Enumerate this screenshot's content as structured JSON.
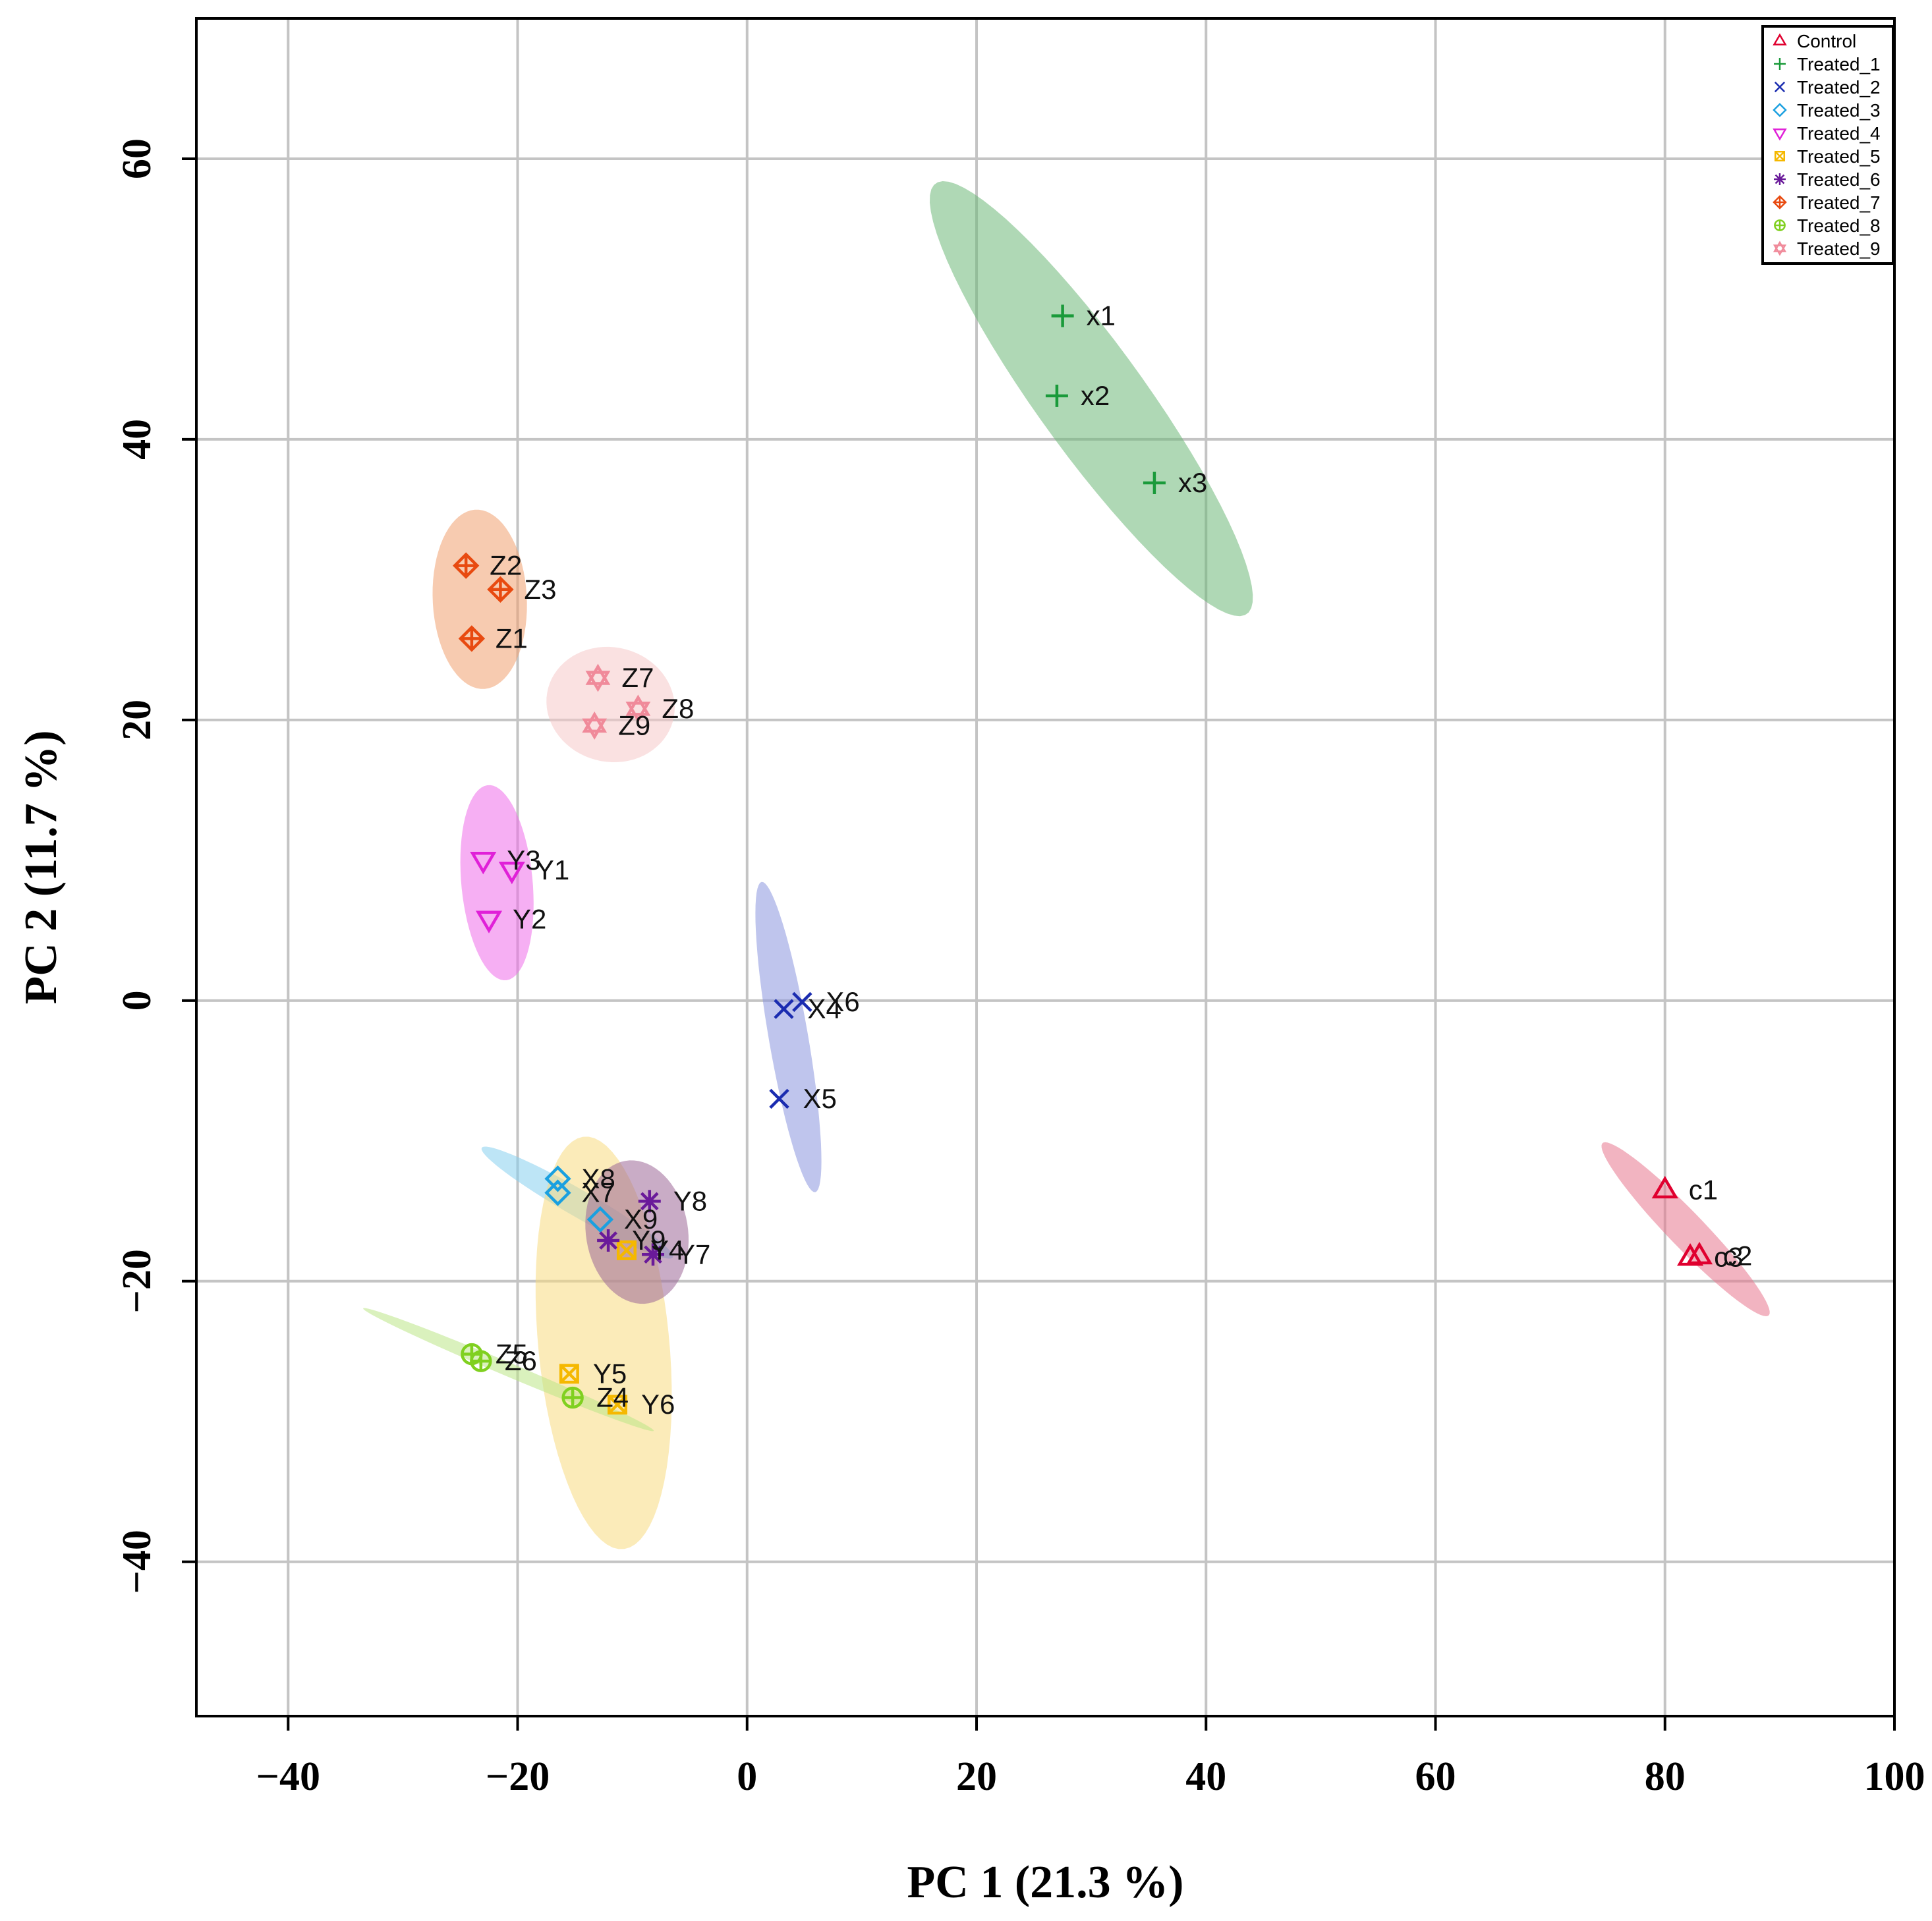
{
  "chart_data": {
    "type": "scatter",
    "title": "",
    "xlabel": "PC 1 (21.3 %)",
    "ylabel": "PC 2 (11.7 %)",
    "xlim": [
      -48,
      100
    ],
    "ylim": [
      -51,
      70
    ],
    "xticks": [
      -40,
      -20,
      0,
      20,
      40,
      60,
      80,
      100
    ],
    "yticks": [
      -40,
      -20,
      0,
      20,
      40,
      60
    ],
    "xtick_labels": [
      "−40",
      "−20",
      "0",
      "20",
      "40",
      "60",
      "80",
      "100"
    ],
    "ytick_labels": [
      "−40",
      "−20",
      "0",
      "20",
      "40",
      "60"
    ],
    "grid": true,
    "legend_position": "top-right",
    "series": [
      {
        "name": "Control",
        "color": "#E0002F",
        "fill": "#E8768E",
        "marker": "triangle-up",
        "points": [
          {
            "label": "c1",
            "x": 80,
            "y": -13.5
          },
          {
            "label": "c2",
            "x": 83,
            "y": -18.2
          },
          {
            "label": "c3",
            "x": 82.2,
            "y": -18.3
          }
        ],
        "ellipse": {
          "cx": 81.8,
          "cy": -16.3,
          "rx": 9.5,
          "ry": 1.4,
          "angle": -40
        }
      },
      {
        "name": "Treated_1",
        "color": "#1A9A3A",
        "fill": "#6DB878",
        "marker": "plus",
        "points": [
          {
            "label": "x1",
            "x": 27.5,
            "y": 48.8
          },
          {
            "label": "x2",
            "x": 27,
            "y": 43.1
          },
          {
            "label": "x3",
            "x": 35.5,
            "y": 36.9
          }
        ],
        "ellipse": {
          "cx": 30,
          "cy": 42.9,
          "rx": 20.5,
          "ry": 4.3,
          "angle": -48
        }
      },
      {
        "name": "Treated_2",
        "color": "#1A2CB0",
        "fill": "#8A96DE",
        "marker": "cross",
        "points": [
          {
            "label": "X4",
            "x": 3.2,
            "y": -0.6
          },
          {
            "label": "X5",
            "x": 2.8,
            "y": -7
          },
          {
            "label": "X6",
            "x": 4.8,
            "y": -0.1
          }
        ],
        "ellipse": {
          "cx": 3.6,
          "cy": -2.6,
          "rx": 11.3,
          "ry": 1.7,
          "angle": -78
        }
      },
      {
        "name": "Treated_3",
        "color": "#1AA0E0",
        "fill": "#86D0EE",
        "marker": "diamond",
        "points": [
          {
            "label": "X7",
            "x": -16.5,
            "y": -13.7
          },
          {
            "label": "X8",
            "x": -16.5,
            "y": -12.7
          },
          {
            "label": "X9",
            "x": -12.8,
            "y": -15.6
          }
        ],
        "ellipse": {
          "cx": -14.8,
          "cy": -14.4,
          "rx": 9.2,
          "ry": 1.0,
          "angle": -25
        }
      },
      {
        "name": "Treated_4",
        "color": "#E020D8",
        "fill": "#EE6EEA",
        "marker": "triangle-down",
        "points": [
          {
            "label": "Y1",
            "x": -20.5,
            "y": 9.3
          },
          {
            "label": "Y2",
            "x": -22.5,
            "y": 5.8
          },
          {
            "label": "Y3",
            "x": -23,
            "y": 10
          }
        ],
        "ellipse": {
          "cx": -21.8,
          "cy": 8.4,
          "rx": 7.0,
          "ry": 3.1,
          "angle": -83
        }
      },
      {
        "name": "Treated_5",
        "color": "#F5B800",
        "fill": "#F8DA80",
        "marker": "square",
        "points": [
          {
            "label": "Y4",
            "x": -10.5,
            "y": -17.8
          },
          {
            "label": "Y5",
            "x": -15.5,
            "y": -26.6
          },
          {
            "label": "Y6",
            "x": -11.3,
            "y": -28.8
          }
        ],
        "ellipse": {
          "cx": -12.5,
          "cy": -24.4,
          "rx": 14.8,
          "ry": 5.7,
          "angle": -83
        }
      },
      {
        "name": "Treated_6",
        "color": "#6A1A9A",
        "fill": "#9C6898",
        "marker": "asterisk",
        "points": [
          {
            "label": "Y7",
            "x": -8.2,
            "y": -18.1
          },
          {
            "label": "Y8",
            "x": -8.5,
            "y": -14.3
          },
          {
            "label": "Y9",
            "x": -12.1,
            "y": -17.1
          }
        ],
        "ellipse": {
          "cx": -9.6,
          "cy": -16.5,
          "rx": 5.2,
          "ry": 4.4,
          "angle": -70
        }
      },
      {
        "name": "Treated_7",
        "color": "#E84A10",
        "fill": "#F0A070",
        "marker": "diamond-plus",
        "points": [
          {
            "label": "Z1",
            "x": -24,
            "y": 25.8
          },
          {
            "label": "Z2",
            "x": -24.5,
            "y": 31
          },
          {
            "label": "Z3",
            "x": -21.5,
            "y": 29.3
          }
        ],
        "ellipse": {
          "cx": -23.3,
          "cy": 28.6,
          "rx": 6.4,
          "ry": 4.1,
          "angle": -86
        }
      },
      {
        "name": "Treated_8",
        "color": "#80D020",
        "fill": "#BCE686",
        "marker": "circle-plus",
        "points": [
          {
            "label": "Z4",
            "x": -15.2,
            "y": -28.3
          },
          {
            "label": "Z5",
            "x": -24,
            "y": -25.2
          },
          {
            "label": "Z6",
            "x": -23.2,
            "y": -25.7
          }
        ],
        "ellipse": {
          "cx": -20.8,
          "cy": -26.3,
          "rx": 13.4,
          "ry": 0.5,
          "angle": -19
        }
      },
      {
        "name": "Treated_9",
        "color": "#F08A9A",
        "fill": "#F6C8C8",
        "marker": "star-of-david",
        "points": [
          {
            "label": "Z7",
            "x": -13,
            "y": 23
          },
          {
            "label": "Z8",
            "x": -9.5,
            "y": 20.8
          },
          {
            "label": "Z9",
            "x": -13.3,
            "y": 19.6
          }
        ],
        "ellipse": {
          "cx": -11.9,
          "cy": 21.1,
          "rx": 5.6,
          "ry": 4.1,
          "angle": -5
        }
      }
    ]
  }
}
